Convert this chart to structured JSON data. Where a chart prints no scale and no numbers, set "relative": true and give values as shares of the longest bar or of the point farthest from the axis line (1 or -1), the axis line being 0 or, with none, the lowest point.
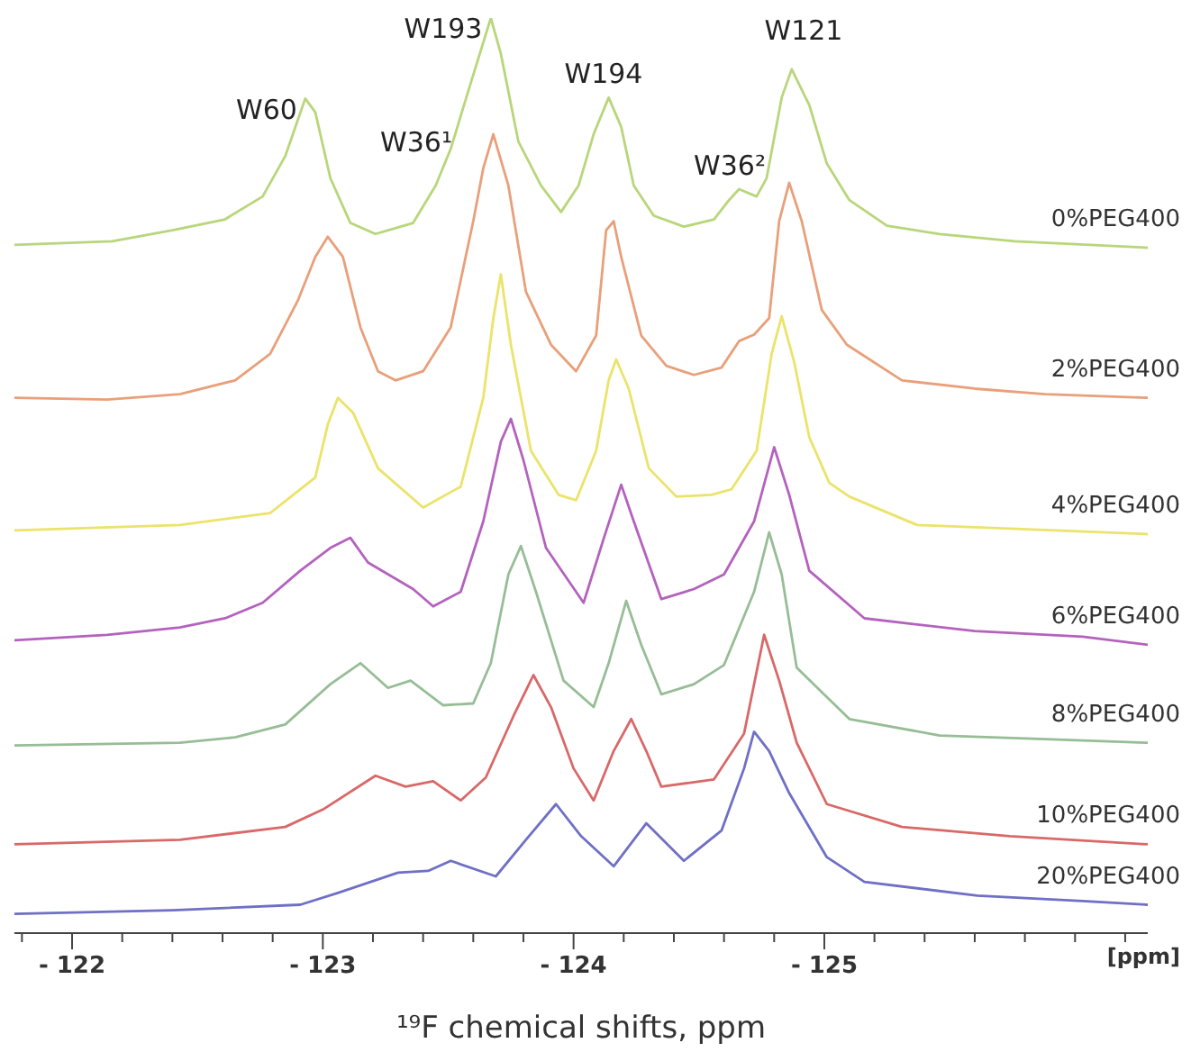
{
  "chart_data": {
    "type": "line",
    "relative": true,
    "xlabel": "¹⁹F chemical shifts, ppm",
    "xlim": [
      -121.77,
      -126.29
    ],
    "xticks": [
      {
        "value": -121.8,
        "label": null
      },
      {
        "value": -122,
        "label": "- 122"
      },
      {
        "value": -122.2,
        "label": null
      },
      {
        "value": -122.4,
        "label": null
      },
      {
        "value": -122.6,
        "label": null
      },
      {
        "value": -122.8,
        "label": null
      },
      {
        "value": -123,
        "label": "- 123"
      },
      {
        "value": -123.2,
        "label": null
      },
      {
        "value": -123.4,
        "label": null
      },
      {
        "value": -123.6,
        "label": null
      },
      {
        "value": -123.8,
        "label": null
      },
      {
        "value": -124,
        "label": "- 124"
      },
      {
        "value": -124.2,
        "label": null
      },
      {
        "value": -124.4,
        "label": null
      },
      {
        "value": -124.6,
        "label": null
      },
      {
        "value": -124.8,
        "label": null
      },
      {
        "value": -125,
        "label": "- 125"
      },
      {
        "value": -125.2,
        "label": null
      },
      {
        "value": -125.4,
        "label": null
      },
      {
        "value": -125.6,
        "label": null
      },
      {
        "value": -125.8,
        "label": null
      },
      {
        "value": -126,
        "label": null
      },
      {
        "value": -126.2,
        "label": null
      }
    ],
    "annotations": [
      "W60",
      "W193",
      "W36¹",
      "W194",
      "W36²",
      "W121",
      "[ppm]"
    ],
    "series": [
      {
        "name": "0%PEG400",
        "color": "#b8d67a",
        "x": [
          -121.77,
          -122.16,
          -122.4,
          -122.61,
          -122.76,
          -122.85,
          -122.93,
          -122.97,
          -123.03,
          -123.11,
          -123.21,
          -123.36,
          -123.45,
          -123.51,
          -123.59,
          -123.67,
          -123.71,
          -123.78,
          -123.87,
          -123.95,
          -124.02,
          -124.08,
          -124.14,
          -124.19,
          -124.24,
          -124.32,
          -124.44,
          -124.56,
          -124.62,
          -124.66,
          -124.73,
          -124.77,
          -124.83,
          -124.87,
          -124.94,
          -125.01,
          -125.1,
          -125.25,
          -125.46,
          -125.76,
          -126.06,
          -126.29
        ],
        "values": [
          0.752,
          0.756,
          0.768,
          0.78,
          0.805,
          0.849,
          0.912,
          0.897,
          0.825,
          0.776,
          0.764,
          0.776,
          0.817,
          0.857,
          0.929,
          1.0,
          0.961,
          0.865,
          0.817,
          0.788,
          0.817,
          0.873,
          0.913,
          0.881,
          0.817,
          0.784,
          0.772,
          0.78,
          0.801,
          0.813,
          0.805,
          0.825,
          0.913,
          0.944,
          0.905,
          0.841,
          0.801,
          0.773,
          0.764,
          0.756,
          0.752,
          0.749
        ]
      },
      {
        "name": "2%PEG400",
        "color": "#e8a07a",
        "x": [
          -121.77,
          -122.14,
          -122.43,
          -122.65,
          -122.79,
          -122.9,
          -122.97,
          -123.02,
          -123.08,
          -123.15,
          -123.22,
          -123.29,
          -123.4,
          -123.51,
          -123.6,
          -123.64,
          -123.68,
          -123.74,
          -123.81,
          -123.91,
          -124.01,
          -124.09,
          -124.13,
          -124.16,
          -124.19,
          -124.27,
          -124.37,
          -124.48,
          -124.59,
          -124.66,
          -124.72,
          -124.78,
          -124.82,
          -124.86,
          -124.91,
          -124.99,
          -125.09,
          -125.31,
          -125.6,
          -125.88,
          -126.29
        ],
        "values": [
          0.585,
          0.583,
          0.589,
          0.604,
          0.633,
          0.691,
          0.739,
          0.761,
          0.739,
          0.662,
          0.614,
          0.604,
          0.614,
          0.662,
          0.778,
          0.836,
          0.873,
          0.817,
          0.701,
          0.643,
          0.614,
          0.653,
          0.768,
          0.778,
          0.739,
          0.653,
          0.62,
          0.61,
          0.618,
          0.647,
          0.654,
          0.672,
          0.778,
          0.82,
          0.778,
          0.681,
          0.643,
          0.604,
          0.595,
          0.589,
          0.585
        ]
      },
      {
        "name": "4%PEG400",
        "color": "#ebe36a",
        "x": [
          -121.77,
          -122.43,
          -122.79,
          -122.97,
          -123.02,
          -123.06,
          -123.12,
          -123.22,
          -123.4,
          -123.55,
          -123.64,
          -123.68,
          -123.71,
          -123.75,
          -123.83,
          -123.94,
          -124.01,
          -124.09,
          -124.14,
          -124.17,
          -124.22,
          -124.3,
          -124.41,
          -124.55,
          -124.63,
          -124.73,
          -124.79,
          -124.83,
          -124.88,
          -124.94,
          -125.02,
          -125.1,
          -125.37,
          -125.74,
          -126.29
        ],
        "values": [
          0.44,
          0.446,
          0.459,
          0.498,
          0.556,
          0.585,
          0.569,
          0.508,
          0.465,
          0.488,
          0.585,
          0.672,
          0.72,
          0.643,
          0.527,
          0.479,
          0.473,
          0.527,
          0.604,
          0.627,
          0.595,
          0.508,
          0.477,
          0.479,
          0.485,
          0.527,
          0.633,
          0.674,
          0.624,
          0.542,
          0.492,
          0.477,
          0.446,
          0.442,
          0.436
        ]
      },
      {
        "name": "6%PEG400",
        "color": "#b462be",
        "x": [
          -121.77,
          -122.14,
          -122.43,
          -122.61,
          -122.76,
          -122.91,
          -123.03,
          -123.11,
          -123.18,
          -123.36,
          -123.44,
          -123.55,
          -123.64,
          -123.71,
          -123.75,
          -123.8,
          -123.89,
          -124.04,
          -124.12,
          -124.19,
          -124.24,
          -124.35,
          -124.48,
          -124.6,
          -124.72,
          -124.8,
          -124.86,
          -124.94,
          -125.16,
          -125.6,
          -126.03,
          -126.29
        ],
        "values": [
          0.32,
          0.326,
          0.334,
          0.344,
          0.361,
          0.396,
          0.421,
          0.432,
          0.405,
          0.376,
          0.357,
          0.373,
          0.45,
          0.537,
          0.562,
          0.517,
          0.421,
          0.361,
          0.431,
          0.49,
          0.45,
          0.365,
          0.376,
          0.392,
          0.45,
          0.531,
          0.479,
          0.396,
          0.344,
          0.33,
          0.324,
          0.315
        ]
      },
      {
        "name": "8%PEG400",
        "color": "#97bd96",
        "x": [
          -121.77,
          -122.43,
          -122.65,
          -122.85,
          -123.03,
          -123.15,
          -123.26,
          -123.35,
          -123.48,
          -123.6,
          -123.67,
          -123.74,
          -123.79,
          -123.85,
          -123.96,
          -124.08,
          -124.14,
          -124.21,
          -124.27,
          -124.35,
          -124.48,
          -124.6,
          -124.72,
          -124.78,
          -124.83,
          -124.89,
          -125.1,
          -125.46,
          -125.88,
          -126.29
        ],
        "values": [
          0.205,
          0.208,
          0.214,
          0.228,
          0.272,
          0.295,
          0.268,
          0.276,
          0.249,
          0.251,
          0.295,
          0.392,
          0.423,
          0.373,
          0.276,
          0.247,
          0.295,
          0.363,
          0.315,
          0.261,
          0.272,
          0.293,
          0.373,
          0.438,
          0.392,
          0.29,
          0.234,
          0.216,
          0.212,
          0.208
        ]
      },
      {
        "name": "10%PEG400",
        "color": "#d96868",
        "x": [
          -121.77,
          -122.43,
          -122.85,
          -123.0,
          -123.21,
          -123.33,
          -123.44,
          -123.55,
          -123.65,
          -123.76,
          -123.84,
          -123.91,
          -124.0,
          -124.08,
          -124.16,
          -124.23,
          -124.29,
          -124.35,
          -124.56,
          -124.68,
          -124.76,
          -124.82,
          -124.89,
          -125.01,
          -125.31,
          -125.74,
          -126.29
        ],
        "values": [
          0.097,
          0.102,
          0.116,
          0.135,
          0.172,
          0.16,
          0.166,
          0.145,
          0.17,
          0.237,
          0.282,
          0.247,
          0.18,
          0.145,
          0.199,
          0.234,
          0.199,
          0.16,
          0.168,
          0.218,
          0.326,
          0.276,
          0.208,
          0.141,
          0.116,
          0.106,
          0.097
        ]
      },
      {
        "name": "20%PEG400",
        "color": "#6f6fc6",
        "x": [
          -121.77,
          -122.4,
          -122.91,
          -123.06,
          -123.3,
          -123.42,
          -123.51,
          -123.69,
          -123.81,
          -123.93,
          -124.03,
          -124.16,
          -124.29,
          -124.44,
          -124.59,
          -124.68,
          -124.72,
          -124.78,
          -124.86,
          -125.01,
          -125.16,
          -125.61,
          -126.03,
          -126.29
        ],
        "values": [
          0.021,
          0.025,
          0.031,
          0.044,
          0.066,
          0.068,
          0.079,
          0.062,
          0.102,
          0.141,
          0.106,
          0.073,
          0.12,
          0.079,
          0.112,
          0.18,
          0.22,
          0.199,
          0.153,
          0.083,
          0.056,
          0.041,
          0.035,
          0.031
        ]
      }
    ]
  }
}
